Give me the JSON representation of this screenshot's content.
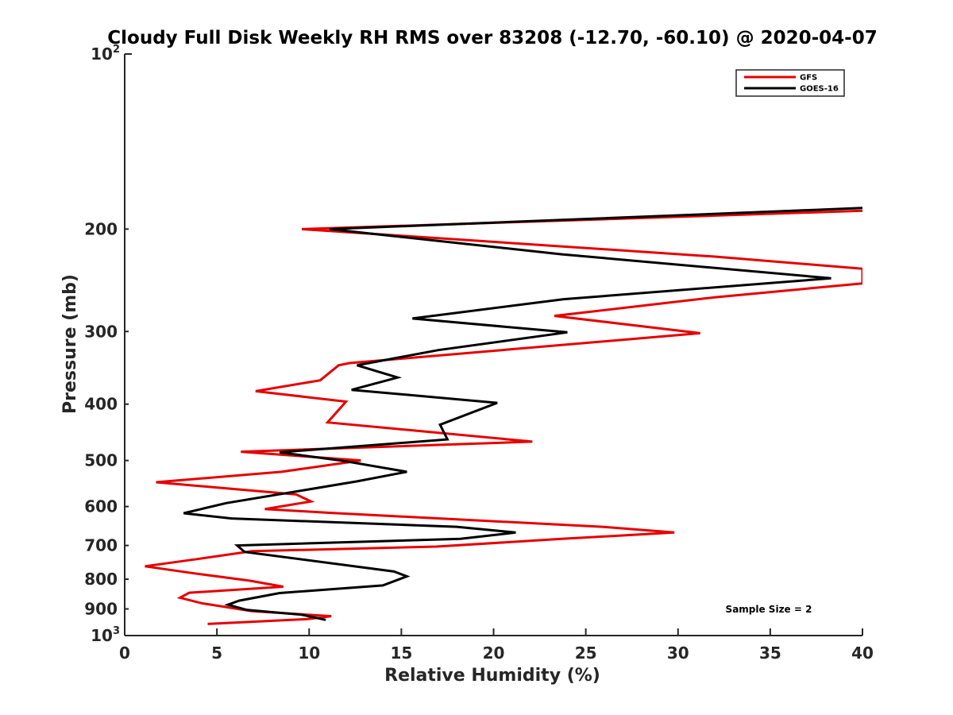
{
  "chart_data": {
    "type": "line",
    "title": "Cloudy Full Disk Weekly RH RMS over 83208 (-12.70, -60.10) @ 2020-04-07",
    "xlabel": "Relative Humidity (%)",
    "ylabel": "Pressure (mb)",
    "xlim": [
      0,
      40
    ],
    "ylim": [
      100,
      1000
    ],
    "yscale": "log",
    "yreversed": true,
    "x_ticks": [
      "0",
      "5",
      "10",
      "15",
      "20",
      "25",
      "30",
      "35",
      "40"
    ],
    "y_ticks": [
      {
        "value": 100,
        "base": "10",
        "exp": "2"
      },
      {
        "value": 200,
        "label": "200"
      },
      {
        "value": 300,
        "label": "300"
      },
      {
        "value": 400,
        "label": "400"
      },
      {
        "value": 500,
        "label": "500"
      },
      {
        "value": 600,
        "label": "600"
      },
      {
        "value": 700,
        "label": "700"
      },
      {
        "value": 800,
        "label": "800"
      },
      {
        "value": 900,
        "label": "900"
      },
      {
        "value": 1000,
        "base": "10",
        "exp": "3"
      }
    ],
    "legend_position": "top-right",
    "annotation": "Sample Size = 2",
    "series": [
      {
        "name": "GFS",
        "color": "#e60000",
        "points": [
          [
            40.0,
            186
          ],
          [
            9.6,
            200
          ],
          [
            32.0,
            223
          ],
          [
            40.0,
            234
          ],
          [
            40.0,
            248
          ],
          [
            32.0,
            262
          ],
          [
            23.3,
            282
          ],
          [
            31.2,
            302
          ],
          [
            12.2,
            340
          ],
          [
            11.6,
            343
          ],
          [
            10.6,
            364
          ],
          [
            7.1,
            380
          ],
          [
            12.0,
            396
          ],
          [
            11.0,
            430
          ],
          [
            22.1,
            464
          ],
          [
            6.3,
            483
          ],
          [
            12.8,
            500
          ],
          [
            8.5,
            523
          ],
          [
            1.7,
            545
          ],
          [
            9.3,
            572
          ],
          [
            10.1,
            588
          ],
          [
            7.6,
            606
          ],
          [
            11.1,
            615
          ],
          [
            25.9,
            650
          ],
          [
            29.8,
            665
          ],
          [
            23.7,
            682
          ],
          [
            16.9,
            703
          ],
          [
            6.9,
            716
          ],
          [
            3.9,
            739
          ],
          [
            1.1,
            760
          ],
          [
            3.8,
            782
          ],
          [
            6.8,
            805
          ],
          [
            8.6,
            824
          ],
          [
            3.5,
            844
          ],
          [
            3.0,
            861
          ],
          [
            4.2,
            880
          ],
          [
            6.9,
            908
          ],
          [
            11.2,
            926
          ],
          [
            9.9,
            937
          ],
          [
            4.5,
            955
          ]
        ]
      },
      {
        "name": "GOES-16",
        "color": "#000000",
        "points": [
          [
            40.0,
            184
          ],
          [
            11.1,
            200
          ],
          [
            23.7,
            221
          ],
          [
            38.3,
            243
          ],
          [
            23.8,
            264
          ],
          [
            15.6,
            285
          ],
          [
            24.0,
            301
          ],
          [
            17.0,
            323
          ],
          [
            12.6,
            343
          ],
          [
            14.8,
            360
          ],
          [
            12.3,
            378
          ],
          [
            20.2,
            398
          ],
          [
            17.1,
            434
          ],
          [
            17.5,
            460
          ],
          [
            8.4,
            484
          ],
          [
            11.9,
            501
          ],
          [
            15.3,
            523
          ],
          [
            12.6,
            543
          ],
          [
            5.5,
            592
          ],
          [
            3.2,
            616
          ],
          [
            5.8,
            629
          ],
          [
            18.0,
            650
          ],
          [
            21.2,
            665
          ],
          [
            18.2,
            682
          ],
          [
            6.1,
            700
          ],
          [
            6.5,
            718
          ],
          [
            14.6,
            776
          ],
          [
            15.3,
            791
          ],
          [
            14.0,
            820
          ],
          [
            8.4,
            845
          ],
          [
            6.2,
            871
          ],
          [
            5.6,
            885
          ],
          [
            6.6,
            903
          ],
          [
            9.6,
            921
          ],
          [
            10.9,
            940
          ]
        ]
      }
    ]
  }
}
